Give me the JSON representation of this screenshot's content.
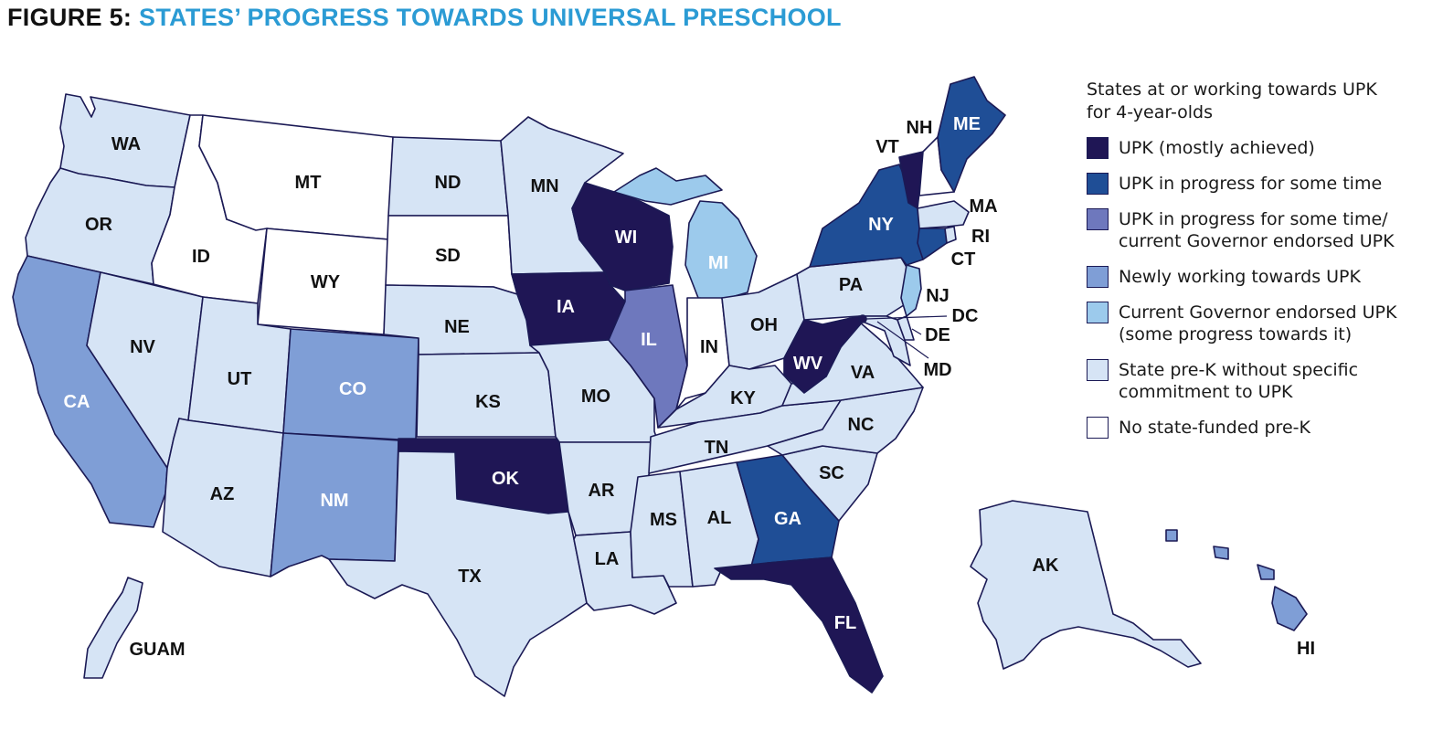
{
  "figure": {
    "prefix": "FIGURE 5:",
    "title": "STATES’ PROGRESS TOWARDS UNIVERSAL PRESCHOOL"
  },
  "legend": {
    "title": "States at or working towards UPK\nfor 4-year-olds",
    "items": [
      {
        "key": "upk_achieved",
        "label": "UPK (mostly achieved)",
        "color": "#1f1655"
      },
      {
        "key": "upk_progress",
        "label": "UPK in progress for some time",
        "color": "#1f4e96"
      },
      {
        "key": "upk_progress_gov",
        "label": "UPK in progress for some time/\ncurrent Governor endorsed UPK",
        "color": "#6e78bd"
      },
      {
        "key": "newly_working",
        "label": "Newly working towards UPK",
        "color": "#7f9ed6"
      },
      {
        "key": "gov_endorsed",
        "label": "Current Governor endorsed UPK\n(some progress towards it)",
        "color": "#9ccaec"
      },
      {
        "key": "prek_no_commit",
        "label": "State pre-K without specific\ncommitment to UPK",
        "color": "#d6e4f5"
      },
      {
        "key": "no_prek",
        "label": "No state-funded pre-K",
        "color": "#ffffff"
      }
    ]
  },
  "states": [
    {
      "abbr": "WA",
      "category": "prek_no_commit"
    },
    {
      "abbr": "OR",
      "category": "prek_no_commit"
    },
    {
      "abbr": "CA",
      "category": "newly_working"
    },
    {
      "abbr": "NV",
      "category": "prek_no_commit"
    },
    {
      "abbr": "ID",
      "category": "no_prek"
    },
    {
      "abbr": "MT",
      "category": "no_prek"
    },
    {
      "abbr": "WY",
      "category": "no_prek"
    },
    {
      "abbr": "UT",
      "category": "prek_no_commit"
    },
    {
      "abbr": "AZ",
      "category": "prek_no_commit"
    },
    {
      "abbr": "CO",
      "category": "newly_working"
    },
    {
      "abbr": "NM",
      "category": "newly_working"
    },
    {
      "abbr": "ND",
      "category": "prek_no_commit"
    },
    {
      "abbr": "SD",
      "category": "no_prek"
    },
    {
      "abbr": "NE",
      "category": "prek_no_commit"
    },
    {
      "abbr": "KS",
      "category": "prek_no_commit"
    },
    {
      "abbr": "OK",
      "category": "upk_achieved"
    },
    {
      "abbr": "TX",
      "category": "prek_no_commit"
    },
    {
      "abbr": "MN",
      "category": "prek_no_commit"
    },
    {
      "abbr": "IA",
      "category": "upk_achieved"
    },
    {
      "abbr": "MO",
      "category": "prek_no_commit"
    },
    {
      "abbr": "AR",
      "category": "prek_no_commit"
    },
    {
      "abbr": "LA",
      "category": "prek_no_commit"
    },
    {
      "abbr": "WI",
      "category": "upk_achieved"
    },
    {
      "abbr": "IL",
      "category": "upk_progress_gov"
    },
    {
      "abbr": "MI",
      "category": "gov_endorsed"
    },
    {
      "abbr": "IN",
      "category": "no_prek"
    },
    {
      "abbr": "OH",
      "category": "prek_no_commit"
    },
    {
      "abbr": "KY",
      "category": "prek_no_commit"
    },
    {
      "abbr": "TN",
      "category": "prek_no_commit"
    },
    {
      "abbr": "MS",
      "category": "prek_no_commit"
    },
    {
      "abbr": "AL",
      "category": "prek_no_commit"
    },
    {
      "abbr": "GA",
      "category": "upk_progress"
    },
    {
      "abbr": "FL",
      "category": "upk_achieved"
    },
    {
      "abbr": "SC",
      "category": "prek_no_commit"
    },
    {
      "abbr": "NC",
      "category": "prek_no_commit"
    },
    {
      "abbr": "VA",
      "category": "prek_no_commit"
    },
    {
      "abbr": "WV",
      "category": "upk_achieved"
    },
    {
      "abbr": "PA",
      "category": "prek_no_commit"
    },
    {
      "abbr": "NY",
      "category": "upk_progress"
    },
    {
      "abbr": "VT",
      "category": "upk_achieved"
    },
    {
      "abbr": "NH",
      "category": "no_prek"
    },
    {
      "abbr": "ME",
      "category": "upk_progress"
    },
    {
      "abbr": "MA",
      "category": "prek_no_commit"
    },
    {
      "abbr": "RI",
      "category": "prek_no_commit"
    },
    {
      "abbr": "CT",
      "category": "upk_progress"
    },
    {
      "abbr": "NJ",
      "category": "gov_endorsed"
    },
    {
      "abbr": "DE",
      "category": "prek_no_commit"
    },
    {
      "abbr": "MD",
      "category": "prek_no_commit"
    },
    {
      "abbr": "DC",
      "category": "upk_achieved"
    },
    {
      "abbr": "AK",
      "category": "prek_no_commit"
    },
    {
      "abbr": "HI",
      "category": "newly_working"
    },
    {
      "abbr": "GUAM",
      "category": "prek_no_commit"
    }
  ]
}
